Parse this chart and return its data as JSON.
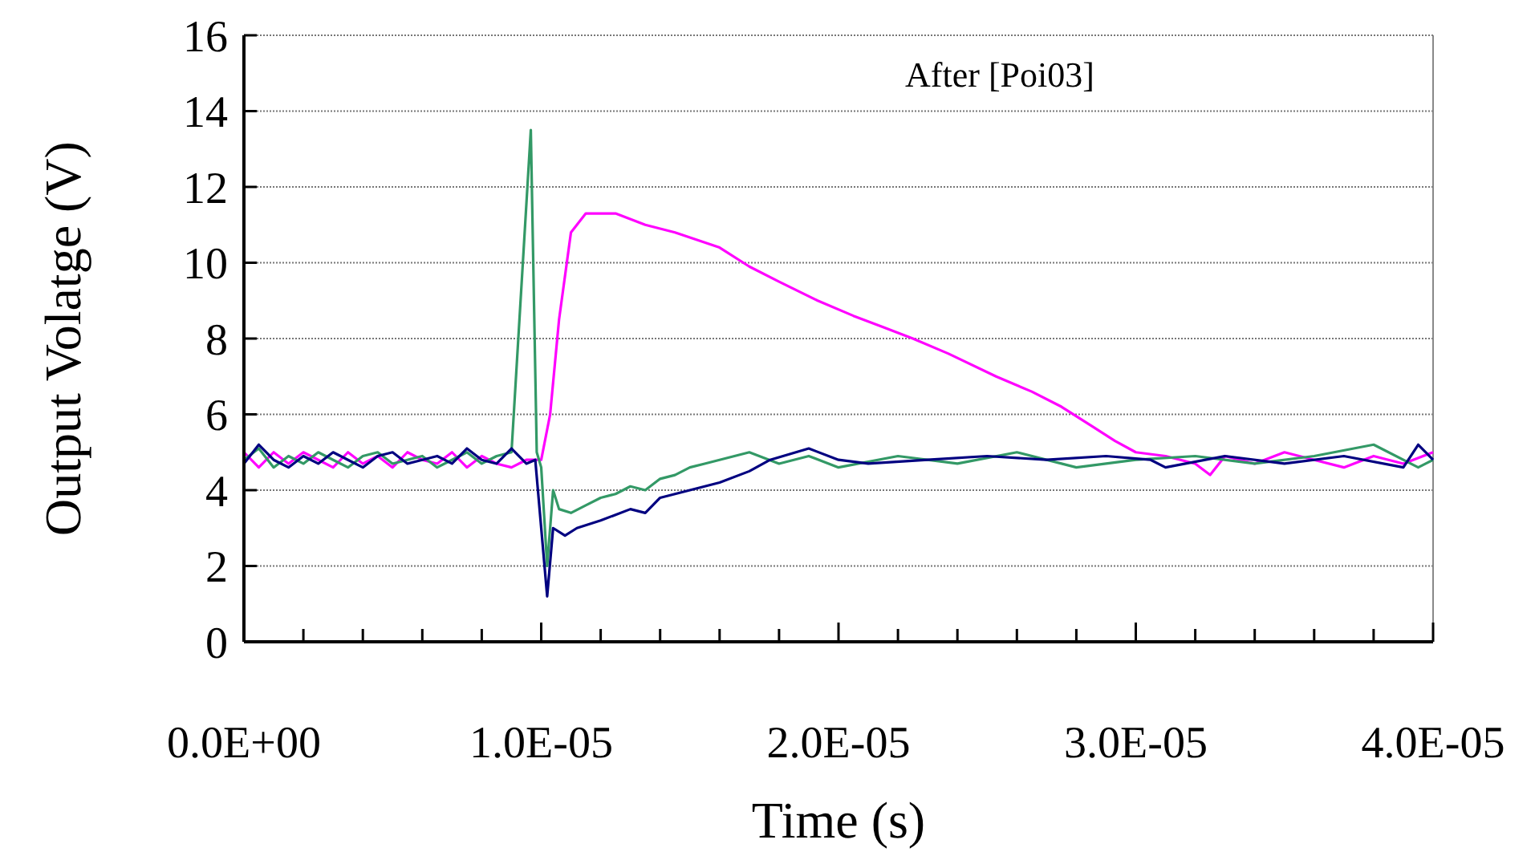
{
  "chart_data": {
    "type": "line",
    "xlabel": "Time (s)",
    "ylabel": "Output Volatge (V)",
    "annotations": [
      "After [Poi03]"
    ],
    "xlim": [
      0,
      4e-05
    ],
    "ylim": [
      0,
      16
    ],
    "xticks": [
      {
        "value": 0,
        "label": "0.0E+00"
      },
      {
        "value": 2e-06,
        "label": null
      },
      {
        "value": 4e-06,
        "label": null
      },
      {
        "value": 6e-06,
        "label": null
      },
      {
        "value": 8e-06,
        "label": null
      },
      {
        "value": 1e-05,
        "label": "1.0E-05"
      },
      {
        "value": 1.2e-05,
        "label": null
      },
      {
        "value": 1.4e-05,
        "label": null
      },
      {
        "value": 1.6e-05,
        "label": null
      },
      {
        "value": 1.8e-05,
        "label": null
      },
      {
        "value": 2e-05,
        "label": "2.0E-05"
      },
      {
        "value": 2.2e-05,
        "label": null
      },
      {
        "value": 2.4e-05,
        "label": null
      },
      {
        "value": 2.6e-05,
        "label": null
      },
      {
        "value": 2.8e-05,
        "label": null
      },
      {
        "value": 3e-05,
        "label": "3.0E-05"
      },
      {
        "value": 3.2e-05,
        "label": null
      },
      {
        "value": 3.4e-05,
        "label": null
      },
      {
        "value": 3.6e-05,
        "label": null
      },
      {
        "value": 3.8e-05,
        "label": null
      },
      {
        "value": 4e-05,
        "label": "4.0E-05"
      }
    ],
    "yticks": [
      0,
      2,
      4,
      6,
      8,
      10,
      12,
      14,
      16
    ],
    "grid": "y",
    "marker": "none",
    "line_style": "solid",
    "series": [
      {
        "color": "#ff00ff",
        "x": [
          0,
          5e-07,
          1e-06,
          1.5e-06,
          2e-06,
          2.5e-06,
          3e-06,
          3.5e-06,
          4e-06,
          4.5e-06,
          5e-06,
          5.5e-06,
          6e-06,
          6.5e-06,
          7e-06,
          7.5e-06,
          8e-06,
          8.5e-06,
          9e-06,
          9.5e-06,
          1e-05,
          1.03e-05,
          1.06e-05,
          1.1e-05,
          1.15e-05,
          1.25e-05,
          1.35e-05,
          1.45e-05,
          1.6e-05,
          1.7e-05,
          1.8e-05,
          1.93e-05,
          2.05e-05,
          2.15e-05,
          2.25e-05,
          2.37e-05,
          2.53e-05,
          2.65e-05,
          2.75e-05,
          2.85e-05,
          2.93e-05,
          3e-05,
          3.1e-05,
          3.2e-05,
          3.25e-05,
          3.3e-05,
          3.4e-05,
          3.5e-05,
          3.6e-05,
          3.7e-05,
          3.8e-05,
          3.9e-05,
          4e-05
        ],
        "values": [
          5.0,
          4.6,
          5.0,
          4.7,
          5.0,
          4.8,
          4.6,
          5.0,
          4.7,
          4.9,
          4.6,
          5.0,
          4.8,
          4.7,
          5.0,
          4.6,
          4.9,
          4.7,
          4.6,
          4.8,
          4.8,
          6.0,
          8.5,
          10.8,
          11.3,
          11.3,
          11.0,
          10.8,
          10.4,
          9.9,
          9.5,
          9.0,
          8.6,
          8.3,
          8.0,
          7.6,
          7.0,
          6.6,
          6.2,
          5.7,
          5.3,
          5.0,
          4.9,
          4.7,
          4.4,
          4.9,
          4.7,
          5.0,
          4.8,
          4.6,
          4.9,
          4.7,
          5.0
        ]
      },
      {
        "color": "#339966",
        "x": [
          0,
          5e-07,
          1e-06,
          1.5e-06,
          2e-06,
          2.5e-06,
          3e-06,
          3.5e-06,
          4e-06,
          4.5e-06,
          5e-06,
          5.5e-06,
          6e-06,
          6.5e-06,
          7e-06,
          7.5e-06,
          8e-06,
          8.5e-06,
          9e-06,
          9.65e-06,
          9.85e-06,
          1e-05,
          1.02e-05,
          1.04e-05,
          1.06e-05,
          1.1e-05,
          1.15e-05,
          1.2e-05,
          1.25e-05,
          1.3e-05,
          1.35e-05,
          1.4e-05,
          1.45e-05,
          1.5e-05,
          1.55e-05,
          1.6e-05,
          1.7e-05,
          1.8e-05,
          1.9e-05,
          2e-05,
          2.2e-05,
          2.4e-05,
          2.6e-05,
          2.8e-05,
          3e-05,
          3.2e-05,
          3.4e-05,
          3.6e-05,
          3.8e-05,
          3.95e-05,
          4e-05
        ],
        "values": [
          4.8,
          5.1,
          4.6,
          4.9,
          4.7,
          5.0,
          4.8,
          4.6,
          4.9,
          5.0,
          4.7,
          4.8,
          4.9,
          4.6,
          4.8,
          5.0,
          4.7,
          4.9,
          5.0,
          13.5,
          5.0,
          4.6,
          2.0,
          4.0,
          3.5,
          3.4,
          3.6,
          3.8,
          3.9,
          4.1,
          4.0,
          4.3,
          4.4,
          4.6,
          4.7,
          4.8,
          5.0,
          4.7,
          4.9,
          4.6,
          4.9,
          4.7,
          5.0,
          4.6,
          4.8,
          4.9,
          4.7,
          4.9,
          5.2,
          4.6,
          4.8
        ]
      },
      {
        "color": "#000080",
        "x": [
          0,
          5e-07,
          1e-06,
          1.5e-06,
          2e-06,
          2.5e-06,
          3e-06,
          3.5e-06,
          4e-06,
          4.5e-06,
          5e-06,
          5.5e-06,
          6e-06,
          6.5e-06,
          7e-06,
          7.5e-06,
          8e-06,
          8.5e-06,
          9e-06,
          9.5e-06,
          9.8e-06,
          1e-05,
          1.02e-05,
          1.04e-05,
          1.08e-05,
          1.12e-05,
          1.2e-05,
          1.3e-05,
          1.35e-05,
          1.4e-05,
          1.5e-05,
          1.6e-05,
          1.7e-05,
          1.77e-05,
          1.9e-05,
          2e-05,
          2.1e-05,
          2.3e-05,
          2.5e-05,
          2.7e-05,
          2.9e-05,
          3.05e-05,
          3.1e-05,
          3.3e-05,
          3.5e-05,
          3.7e-05,
          3.9e-05,
          3.95e-05,
          4e-05
        ],
        "values": [
          4.7,
          5.2,
          4.8,
          4.6,
          4.9,
          4.7,
          5.0,
          4.8,
          4.6,
          4.9,
          5.0,
          4.7,
          4.8,
          4.9,
          4.7,
          5.1,
          4.8,
          4.7,
          5.1,
          4.7,
          4.8,
          3.0,
          1.2,
          3.0,
          2.8,
          3.0,
          3.2,
          3.5,
          3.4,
          3.8,
          4.0,
          4.2,
          4.5,
          4.8,
          5.1,
          4.8,
          4.7,
          4.8,
          4.9,
          4.8,
          4.9,
          4.8,
          4.6,
          4.9,
          4.7,
          4.9,
          4.6,
          5.2,
          4.8
        ]
      }
    ]
  }
}
